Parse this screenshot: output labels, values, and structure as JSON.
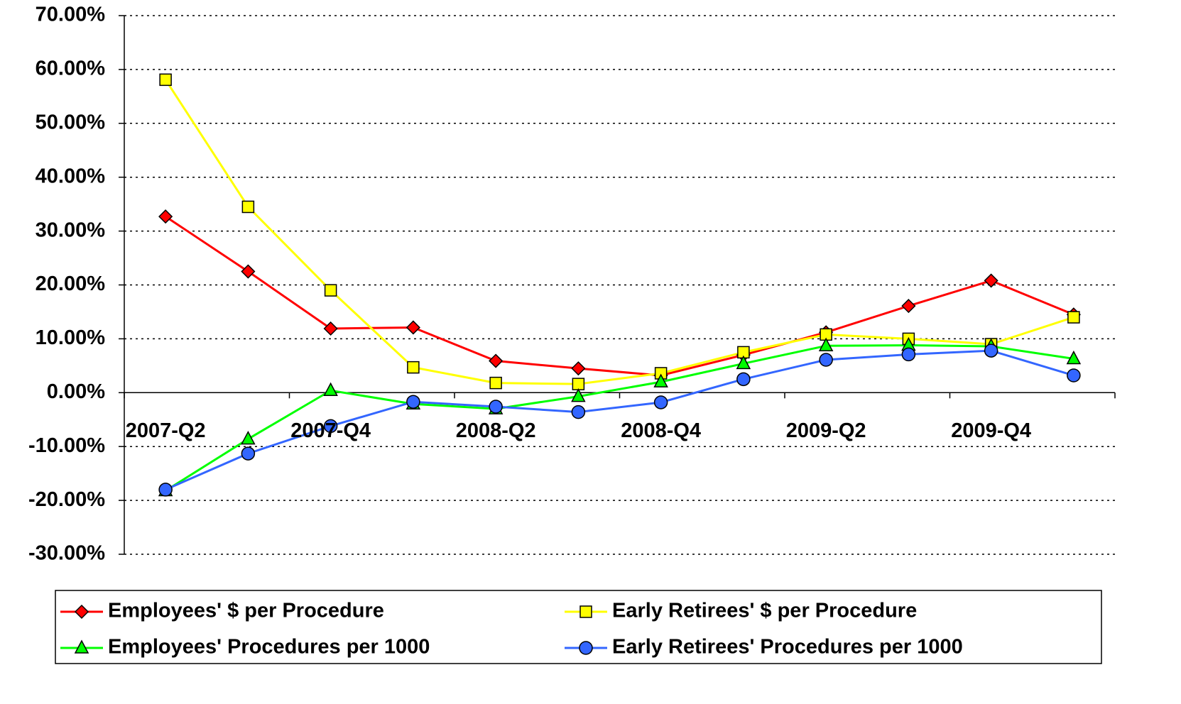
{
  "chart_data": {
    "type": "line",
    "categories": [
      "2007-Q2",
      null,
      "2007-Q4",
      null,
      "2008-Q2",
      null,
      "2008-Q4",
      null,
      "2009-Q2",
      null,
      "2009-Q4",
      null
    ],
    "series": [
      {
        "name": "Employees' $ per Procedure",
        "color": "#ff0000",
        "marker": "diamond",
        "values": [
          32.7,
          22.5,
          11.9,
          12.1,
          5.9,
          4.5,
          3.2,
          7.0,
          11.2,
          16.1,
          20.8,
          14.5
        ]
      },
      {
        "name": "Early Retirees' $ per Procedure",
        "color": "#ffff00",
        "marker": "square",
        "values": [
          58.1,
          34.5,
          19.0,
          4.7,
          1.8,
          1.6,
          3.6,
          7.5,
          10.8,
          10.0,
          9.0,
          14.0
        ]
      },
      {
        "name": "Employees' Procedures per 1000",
        "color": "#00ff00",
        "marker": "triangle",
        "values": [
          -18.2,
          -8.6,
          0.4,
          -2.1,
          -3.0,
          -0.7,
          2.0,
          5.4,
          8.7,
          8.8,
          8.6,
          6.3
        ]
      },
      {
        "name": "Early Retirees' Procedures per 1000",
        "color": "#3366ff",
        "marker": "circle",
        "values": [
          -18.0,
          -11.3,
          -6.2,
          -1.7,
          -2.6,
          -3.6,
          -1.8,
          2.5,
          6.1,
          7.1,
          7.8,
          3.2
        ]
      }
    ],
    "ylim": [
      -30,
      70
    ],
    "yticks": [
      {
        "value": -30,
        "label": "-30.00%"
      },
      {
        "value": -20,
        "label": "-20.00%"
      },
      {
        "value": -10,
        "label": "-10.00%"
      },
      {
        "value": 0,
        "label": "0.00%"
      },
      {
        "value": 10,
        "label": "10.00%"
      },
      {
        "value": 20,
        "label": "20.00%"
      },
      {
        "value": 30,
        "label": "30.00%"
      },
      {
        "value": 40,
        "label": "40.00%"
      },
      {
        "value": 50,
        "label": "50.00%"
      },
      {
        "value": 60,
        "label": "60.00%"
      },
      {
        "value": 70,
        "label": "70.00%"
      }
    ],
    "grid": true,
    "legend": "bottom"
  }
}
